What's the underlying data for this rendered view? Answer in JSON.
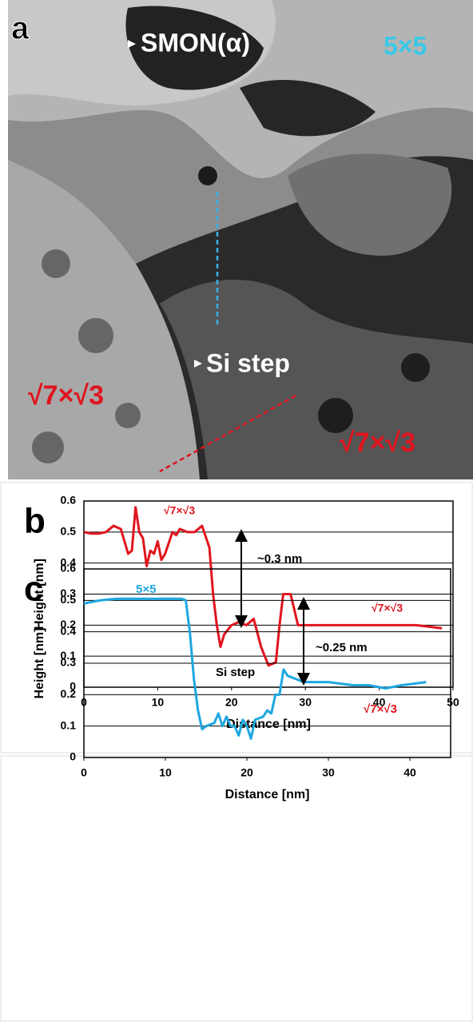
{
  "panel_a": {
    "label": "a",
    "annotations": [
      "SMON(α)",
      "5×5",
      "Si step",
      "√7×√3",
      "√7×√3"
    ]
  },
  "chart_data": [
    {
      "type": "line",
      "panel_label": "b",
      "x_label": "Distance [nm]",
      "y_label": "Height [nm]",
      "xlim": [
        0,
        50
      ],
      "ylim": [
        0,
        0.6
      ],
      "xticks": [
        0,
        10,
        20,
        30,
        40,
        50
      ],
      "yticks": [
        0,
        0.1,
        0.2,
        0.3,
        0.4,
        0.5,
        0.6
      ],
      "grid": true,
      "x": [
        0,
        1,
        2,
        3,
        4,
        5,
        6,
        6.5,
        7,
        7.5,
        8,
        8.5,
        9,
        9.5,
        10,
        10.5,
        11,
        12,
        12.5,
        13,
        14,
        15,
        16,
        17,
        17.5,
        18,
        18.5,
        19,
        20,
        21,
        22,
        23,
        24,
        25,
        26,
        26.5,
        27,
        28,
        29,
        30,
        35,
        40,
        45,
        48.5
      ],
      "series": [
        {
          "color": "#e0141e",
          "values": [
            0.5,
            0.495,
            0.495,
            0.5,
            0.52,
            0.51,
            0.43,
            0.44,
            0.58,
            0.5,
            0.48,
            0.39,
            0.44,
            0.43,
            0.47,
            0.41,
            0.43,
            0.5,
            0.49,
            0.51,
            0.5,
            0.5,
            0.52,
            0.45,
            0.3,
            0.2,
            0.13,
            0.17,
            0.2,
            0.21,
            0.2,
            0.22,
            0.13,
            0.07,
            0.08,
            0.2,
            0.3,
            0.3,
            0.2,
            0.2,
            0.2,
            0.2,
            0.2,
            0.19
          ]
        }
      ],
      "annotations": [
        "√7×√3",
        "~0.3 nm",
        "Si step",
        "√7×√3"
      ]
    },
    {
      "type": "line",
      "panel_label": "c",
      "x_label": "Distance [nm]",
      "y_label": "Height [nm]",
      "xlim": [
        0,
        45
      ],
      "ylim": [
        0,
        0.6
      ],
      "xticks": [
        0,
        10,
        20,
        30,
        40
      ],
      "yticks": [
        0,
        0.1,
        0.2,
        0.3,
        0.4,
        0.5,
        0.6
      ],
      "grid": true,
      "x": [
        0,
        2,
        4,
        6,
        8,
        10,
        12,
        12.5,
        13,
        13.5,
        14,
        14.5,
        15,
        16,
        16.5,
        17,
        17.5,
        18,
        18.5,
        19,
        19.5,
        20,
        20.5,
        21,
        22,
        22.5,
        23,
        23.5,
        24,
        24.5,
        25,
        26,
        27,
        30,
        33,
        35,
        37,
        39,
        42
      ],
      "series": [
        {
          "color": "#1ea7e0",
          "values": [
            0.49,
            0.5,
            0.505,
            0.505,
            0.505,
            0.505,
            0.505,
            0.5,
            0.4,
            0.25,
            0.15,
            0.09,
            0.1,
            0.11,
            0.14,
            0.1,
            0.13,
            0.1,
            0.1,
            0.07,
            0.12,
            0.1,
            0.06,
            0.12,
            0.13,
            0.15,
            0.14,
            0.2,
            0.2,
            0.28,
            0.26,
            0.25,
            0.24,
            0.24,
            0.23,
            0.23,
            0.22,
            0.23,
            0.24
          ]
        }
      ],
      "annotations": [
        "5×5",
        "~0.25 nm",
        "√7×√3"
      ]
    }
  ]
}
